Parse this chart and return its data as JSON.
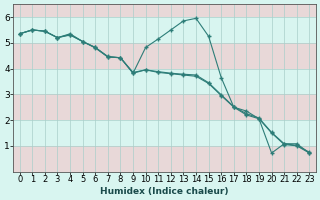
{
  "xlabel": "Humidex (Indice chaleur)",
  "x_values": [
    0,
    1,
    2,
    3,
    4,
    5,
    6,
    7,
    8,
    9,
    10,
    11,
    12,
    13,
    14,
    15,
    16,
    17,
    18,
    19,
    20,
    21,
    22,
    23
  ],
  "line1": [
    5.35,
    5.5,
    5.45,
    5.2,
    5.35,
    5.05,
    4.82,
    4.45,
    4.42,
    3.82,
    4.82,
    5.15,
    5.5,
    5.85,
    5.95,
    5.25,
    3.65,
    2.5,
    2.35,
    2.05,
    0.72,
    1.08,
    1.08,
    0.72
  ],
  "line2": [
    5.35,
    5.5,
    5.45,
    5.2,
    5.3,
    5.05,
    4.8,
    4.45,
    4.42,
    3.82,
    3.95,
    3.85,
    3.8,
    3.75,
    3.7,
    3.42,
    2.95,
    2.5,
    2.2,
    2.05,
    1.5,
    1.05,
    1.0,
    0.72
  ],
  "line3": [
    5.35,
    5.5,
    5.45,
    5.2,
    5.32,
    5.05,
    4.82,
    4.47,
    4.42,
    3.85,
    3.95,
    3.88,
    3.82,
    3.78,
    3.75,
    3.45,
    2.98,
    2.52,
    2.25,
    2.08,
    1.52,
    1.08,
    1.02,
    0.75
  ],
  "line_color": "#2d7d78",
  "bg_color": "#d8f5f0",
  "band_color1": "#d8f5f0",
  "band_color2": "#e8d8d8",
  "grid_color": "#aacfca",
  "ylim": [
    0,
    6.5
  ],
  "yticks": [
    1,
    2,
    3,
    4,
    5,
    6
  ],
  "xlabel_fontsize": 6.5,
  "tick_fontsize": 6.0
}
